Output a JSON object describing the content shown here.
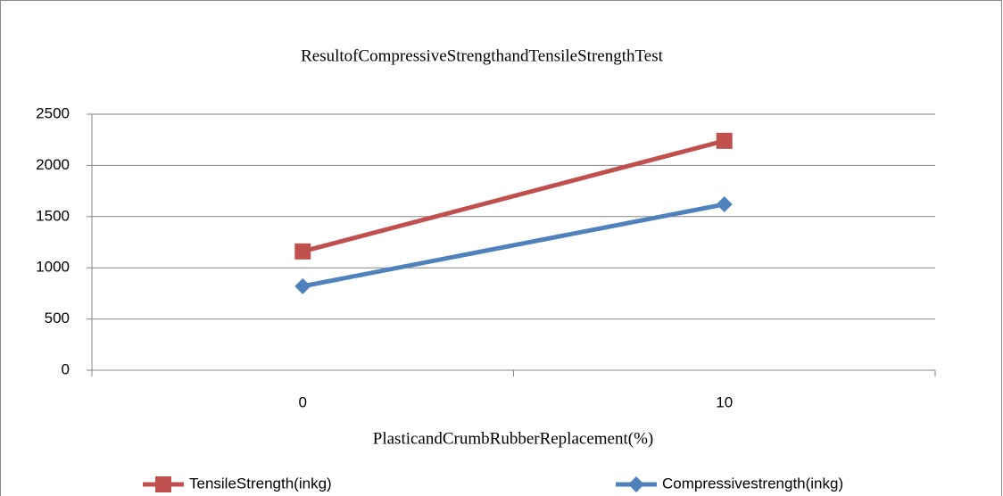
{
  "chart_data": {
    "type": "line",
    "title": "ResultofCompressiveStrengthandTensileStrengthTest",
    "x_label": "PlasticandCrumbRubberReplacement(%)",
    "categories": [
      "0",
      "10"
    ],
    "series": [
      {
        "name": "TensileStrength(inkg)",
        "color": "#c0504d",
        "marker": "square",
        "values": [
          1160,
          2240
        ]
      },
      {
        "name": "Compressivestrength(inkg)",
        "color": "#4f81bd",
        "marker": "diamond",
        "values": [
          820,
          1620
        ]
      }
    ],
    "ylim": [
      0,
      2500
    ],
    "yticks": [
      0,
      500,
      1000,
      1500,
      2000,
      2500
    ],
    "grid": true,
    "legend": "bottom"
  }
}
